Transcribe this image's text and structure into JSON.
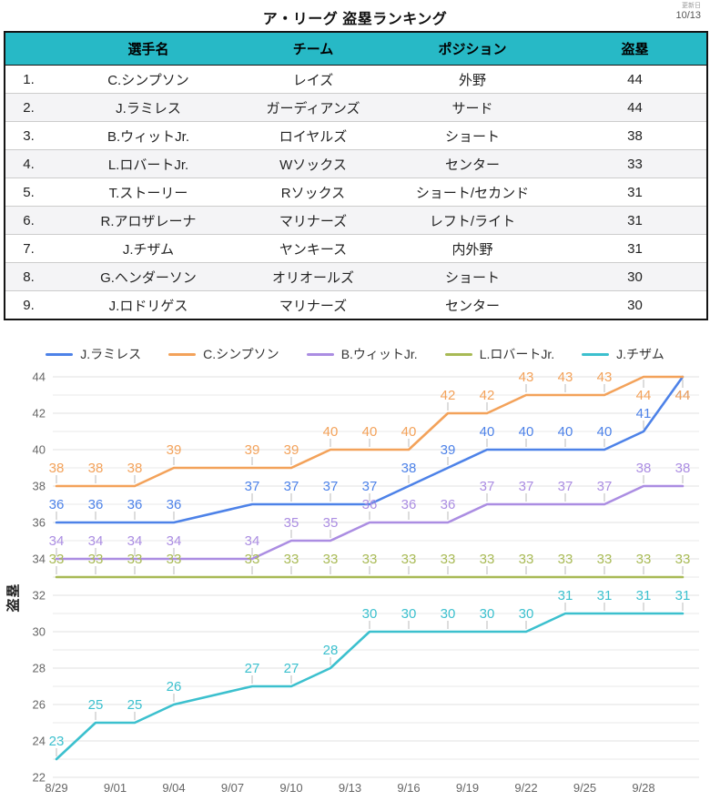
{
  "header": {
    "title": "ア・リーグ 盗塁ランキング",
    "update_label": "更新日",
    "update_date": "10/13"
  },
  "table": {
    "header_bg": "#27b9c6",
    "columns": [
      "選手名",
      "チーム",
      "ポジション",
      "盗塁"
    ],
    "rows": [
      {
        "rank": "1.",
        "name": "C.シンプソン",
        "team": "レイズ",
        "position": "外野",
        "steals": "44"
      },
      {
        "rank": "2.",
        "name": "J.ラミレス",
        "team": "ガーディアンズ",
        "position": "サード",
        "steals": "44"
      },
      {
        "rank": "3.",
        "name": "B.ウィットJr.",
        "team": "ロイヤルズ",
        "position": "ショート",
        "steals": "38"
      },
      {
        "rank": "4.",
        "name": "L.ロバートJr.",
        "team": "Wソックス",
        "position": "センター",
        "steals": "33"
      },
      {
        "rank": "5.",
        "name": "T.ストーリー",
        "team": "Rソックス",
        "position": "ショート/セカンド",
        "steals": "31"
      },
      {
        "rank": "6.",
        "name": "R.アロザレーナ",
        "team": "マリナーズ",
        "position": "レフト/ライト",
        "steals": "31"
      },
      {
        "rank": "7.",
        "name": "J.チザム",
        "team": "ヤンキース",
        "position": "内外野",
        "steals": "31"
      },
      {
        "rank": "8.",
        "name": "G.ヘンダーソン",
        "team": "オリオールズ",
        "position": "ショート",
        "steals": "30"
      },
      {
        "rank": "9.",
        "name": "J.ロドリゲス",
        "team": "マリナーズ",
        "position": "センター",
        "steals": "30"
      }
    ]
  },
  "chart_data": {
    "type": "line",
    "x": [
      "8/29",
      "8/31",
      "9/02",
      "9/04",
      "9/08",
      "9/10",
      "9/12",
      "9/14",
      "9/16",
      "9/18",
      "9/20",
      "9/22",
      "9/24",
      "9/26",
      "9/28",
      "9/30"
    ],
    "x_axis_ticks": [
      "8/29",
      "9/01",
      "9/04",
      "9/07",
      "9/10",
      "9/13",
      "9/16",
      "9/19",
      "9/22",
      "9/25",
      "9/28"
    ],
    "series": [
      {
        "name": "J.ラミレス",
        "color": "#4d82e8",
        "values": [
          36,
          36,
          36,
          36,
          37,
          37,
          37,
          37,
          38,
          39,
          40,
          40,
          40,
          40,
          41,
          44
        ]
      },
      {
        "name": "C.シンプソン",
        "color": "#f3a25a",
        "values": [
          38,
          38,
          38,
          39,
          39,
          39,
          40,
          40,
          40,
          42,
          42,
          43,
          43,
          43,
          44,
          44
        ]
      },
      {
        "name": "B.ウィットJr.",
        "color": "#ab8de2",
        "values": [
          34,
          34,
          34,
          34,
          34,
          35,
          35,
          36,
          36,
          36,
          37,
          37,
          37,
          37,
          38,
          38
        ]
      },
      {
        "name": "L.ロバートJr.",
        "color": "#a8ba55",
        "values": [
          33,
          33,
          33,
          33,
          33,
          33,
          33,
          33,
          33,
          33,
          33,
          33,
          33,
          33,
          33,
          33
        ]
      },
      {
        "name": "J.チザム",
        "color": "#3cc0ce",
        "values": [
          23,
          25,
          25,
          26,
          27,
          27,
          28,
          30,
          30,
          30,
          30,
          30,
          31,
          31,
          31,
          31
        ]
      }
    ],
    "title": "",
    "xlabel": "",
    "ylabel": "盗塁",
    "ylim": [
      22,
      44
    ],
    "y_tick_step": 2,
    "grid": true,
    "legend_position": "top",
    "grid_color": "#e9e9e9",
    "axis_text_color": "#666",
    "label_tick_color": "#bbb"
  }
}
